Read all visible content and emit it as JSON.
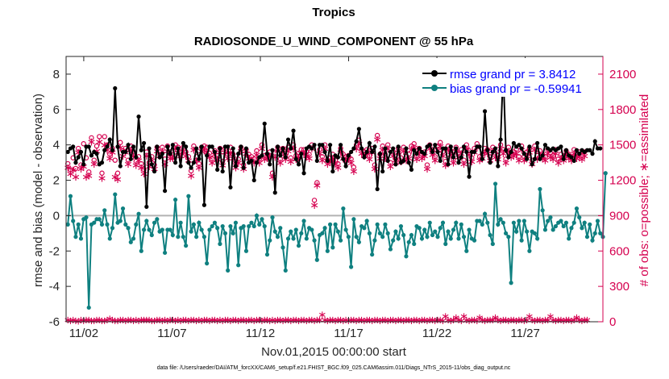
{
  "chart_data": {
    "type": "line",
    "title": "Tropics",
    "subtitle": "RADIOSONDE_U_WIND_COMPONENT @ 55 hPa",
    "xlabel": "Nov.01,2015 00:00:00 start",
    "ylabel": "rmse and bias (model - observation)",
    "ylabel_right": "# of obs: o=possible; ∗=assimilated",
    "footnote": "data file: /Users/raeder/DAI/ATM_forcXX/CAM6_setup/f.e21.FHIST_BGC.f09_025.CAM6assim.011/Diags_NTrS_2015-11/obs_diag_output.nc",
    "xlim": [
      0.5,
      30.9
    ],
    "ylim": [
      -6,
      9
    ],
    "ylim_right": [
      0,
      2250
    ],
    "x_ticks": [
      1.5,
      6.5,
      11.5,
      16.5,
      21.5,
      26.5
    ],
    "x_tick_labels": [
      "11/02",
      "11/07",
      "11/12",
      "11/17",
      "11/22",
      "11/27"
    ],
    "y_ticks": [
      -6,
      -4,
      -2,
      0,
      2,
      4,
      6,
      8
    ],
    "y_tick_labels": [
      "-6",
      "-4",
      "-2",
      "0",
      "2",
      "4",
      "6",
      "8"
    ],
    "y_right_ticks": [
      0,
      300,
      600,
      900,
      1200,
      1500,
      1800,
      2100
    ],
    "y_right_tick_labels": [
      "0",
      "300",
      "600",
      "900",
      "1200",
      "1500",
      "1800",
      "2100"
    ],
    "zero_line": 0,
    "colors": {
      "rmse": "#000000",
      "bias": "#0f8080",
      "obs": "#d5004f",
      "zero": "#b3b3b3",
      "legend_text": "#0000ff"
    },
    "series": [
      {
        "name": "rmse grand pr = 3.8412",
        "values": [
          3.6,
          3.8,
          3.9,
          3.0,
          3.3,
          3.6,
          2.9,
          3.9,
          3.9,
          3.4,
          3.6,
          3.5,
          2.9,
          3.0,
          3.7,
          3.9,
          4.3,
          3.7,
          7.2,
          3.9,
          2.8,
          3.6,
          3.6,
          4.0,
          3.2,
          3.9,
          3.3,
          5.6,
          3.7,
          4.1,
          0.5,
          3.8,
          2.9,
          2.5,
          3.9,
          3.3,
          3.5,
          1.4,
          3.9,
          3.5,
          4.0,
          3.0,
          3.8,
          2.8,
          4.1,
          3.9,
          3.0,
          2.7,
          3.0,
          3.8,
          3.2,
          3.9,
          0.6,
          3.4,
          3.9,
          3.9,
          3.6,
          2.6,
          3.8,
          2.5,
          3.9,
          3.9,
          1.6,
          3.8,
          2.8,
          3.5,
          3.9,
          2.7,
          3.8,
          3.0,
          3.1,
          2.0,
          3.0,
          3.3,
          3.4,
          5.2,
          3.5,
          2.9,
          3.7,
          1.3,
          3.9,
          3.4,
          3.8,
          3.3,
          4.3,
          3.8,
          4.8,
          3.2,
          2.9,
          3.5,
          2.4,
          3.8,
          3.9,
          3.8,
          4.0,
          3.1,
          4.0,
          4.0,
          3.6,
          3.1,
          4.0,
          2.5,
          3.4,
          3.3,
          4.0,
          3.2,
          2.8,
          3.4,
          3.6,
          3.8,
          4.2,
          4.9,
          3.8,
          3.3,
          3.6,
          4.1,
          3.6,
          3.9,
          1.5,
          3.5,
          2.5,
          3.8,
          3.1,
          3.6,
          3.8,
          2.9,
          3.9,
          3.0,
          3.1,
          3.8,
          3.0,
          2.6,
          3.7,
          3.5,
          3.8,
          3.6,
          3.5,
          3.9,
          4.0,
          3.6,
          4.0,
          3.6,
          3.1,
          3.8,
          3.8,
          2.9,
          3.9,
          3.3,
          3.8,
          3.0,
          3.3,
          3.9,
          3.6,
          2.2,
          3.6,
          3.6,
          3.9,
          3.9,
          3.2,
          5.9,
          3.7,
          3.0,
          3.6,
          3.8,
          2.8,
          4.3,
          8.2,
          3.7,
          3.3,
          3.6,
          4.1,
          3.9,
          4.0,
          3.8,
          3.5,
          3.2,
          3.9,
          2.9,
          3.2,
          4.1,
          3.2,
          3.4,
          4.0,
          3.8,
          3.7,
          3.8,
          3.7,
          3.8,
          3.9,
          3.2,
          3.7,
          3.4,
          3.3,
          3.1,
          3.7,
          3.5,
          3.7,
          3.6,
          3.7,
          3.7,
          3.5,
          4.2,
          3.8,
          3.8
        ]
      },
      {
        "name": "bias grand pr = -0.59941",
        "values": [
          -0.5,
          1.1,
          -0.3,
          -1.2,
          -0.5,
          -1.3,
          -0.2,
          -0.1,
          -5.2,
          -0.5,
          -0.4,
          -0.2,
          -0.2,
          -0.5,
          0.3,
          -0.5,
          -1.3,
          -0.7,
          1.2,
          -0.4,
          -0.3,
          0.4,
          -0.5,
          -0.7,
          -1.5,
          -1.3,
          -0.5,
          0.1,
          -2.0,
          -0.8,
          -0.3,
          -0.8,
          -1.1,
          -0.4,
          -0.2,
          -0.9,
          -0.8,
          -2.1,
          -0.8,
          -0.8,
          -1.1,
          0.9,
          -1.2,
          -0.4,
          -1.2,
          -1.7,
          1.1,
          -0.9,
          -0.5,
          -1.2,
          -0.4,
          -0.8,
          -1.2,
          -2.7,
          -0.8,
          -0.6,
          -0.4,
          -0.7,
          -1.6,
          -0.6,
          -1.0,
          -3.1,
          -0.6,
          -1.0,
          -0.4,
          -2.8,
          -0.7,
          -0.6,
          -2.0,
          -0.6,
          -0.4,
          -0.6,
          0.0,
          -0.5,
          -0.2,
          -0.6,
          -2.2,
          -1.4,
          -0.1,
          -0.9,
          -1.2,
          -0.7,
          -1.8,
          -3.1,
          -1.3,
          -0.9,
          -1.3,
          -0.8,
          -1.7,
          -1.0,
          -0.3,
          -1.3,
          -0.7,
          -0.8,
          -1.4,
          -2.5,
          -1.1,
          -1.0,
          -0.7,
          -2.0,
          -0.5,
          -1.8,
          -0.5,
          -0.9,
          -1.4,
          0.4,
          -0.8,
          -1.2,
          -2.9,
          -0.2,
          -1.2,
          -1.5,
          -0.6,
          -0.7,
          -0.3,
          -1.0,
          -2.2,
          -1.4,
          -0.5,
          -1.0,
          -1.2,
          -0.5,
          -1.0,
          -1.9,
          -1.4,
          -0.9,
          -1.3,
          -0.6,
          -1.1,
          -2.3,
          -1.5,
          -1.1,
          -1.6,
          -0.6,
          -0.7,
          -1.3,
          -0.8,
          -1.2,
          -0.4,
          -1.1,
          -0.9,
          -1.2,
          -0.7,
          -0.4,
          -1.6,
          -0.9,
          -1.3,
          -0.8,
          -0.4,
          -1.3,
          -0.5,
          -1.2,
          -2.0,
          -0.8,
          -1.3,
          -1.4,
          -0.3,
          -0.3,
          -0.5,
          0.1,
          -0.4,
          -1.1,
          -1.6,
          1.8,
          -0.5,
          -0.2,
          -0.4,
          -1.0,
          -1.2,
          -3.8,
          -0.4,
          -0.9,
          -0.3,
          -1.4,
          -0.3,
          -0.9,
          -2.0,
          -0.9,
          -1.0,
          -1.3,
          1.5,
          0.3,
          -0.8,
          -0.3,
          -0.1,
          -0.8,
          -0.6,
          -0.4,
          -0.3,
          -0.6,
          -0.4,
          -1.3,
          -0.7,
          -0.4,
          0.4,
          -0.1,
          -0.7,
          -0.4,
          -1.2,
          -0.5,
          -1.4,
          -1.0,
          -0.3,
          -1.0,
          -1.2,
          2.4
        ]
      }
    ],
    "obs_possible": [
      1340,
      1290,
      1390,
      1300,
      1470,
      1330,
      1510,
      1390,
      1270,
      1560,
      1370,
      1490,
      1570,
      1260,
      1570,
      1500,
      1420,
      1470,
      1370,
      1260,
      1520,
      1450,
      1470,
      1370,
      1490,
      1440,
      1360,
      1400,
      1340,
      1290,
      1440,
      1350,
      1400,
      1330,
      1480,
      1440,
      1480,
      1380,
      1490,
      1420,
      1420,
      1500,
      1480,
      1440,
      1480,
      1440,
      1400,
      1280,
      1490,
      1400,
      1340,
      1480,
      1490,
      1480,
      1430,
      1380,
      1450,
      1410,
      1470,
      1360,
      1470,
      1420,
      1480,
      1420,
      1340,
      1380,
      1480,
      1330,
      1460,
      1420,
      1400,
      1380,
      1450,
      1380,
      1500,
      1410,
      1420,
      1440,
      1260,
      1430,
      1480,
      1380,
      1470,
      1410,
      1480,
      1390,
      1500,
      1410,
      1430,
      1460,
      1460,
      1440,
      1420,
      1500,
      1030,
      1180,
      1460,
      1400,
      1500,
      1370,
      1390,
      1420,
      1370,
      1340,
      1470,
      1420,
      1400,
      1410,
      1380,
      1310,
      1500,
      1540,
      1460,
      1440,
      1460,
      1410,
      1470,
      1330,
      1580,
      1420,
      1490,
      1420,
      1500,
      1350,
      1440,
      1380,
      1470,
      1390,
      1480,
      1400,
      1420,
      1490,
      1510,
      1410,
      1470,
      1420,
      1440,
      1330,
      1500,
      1450,
      1400,
      1490,
      1520,
      1440,
      1360,
      1490,
      1450,
      1380,
      1480,
      1430,
      1460,
      1370,
      1500,
      1450,
      1390,
      1470,
      1510,
      1400,
      1420,
      1470,
      1460,
      1400,
      1480,
      1430,
      1410,
      1500,
      1460,
      1380,
      1480,
      1430,
      1440,
      1460,
      1400,
      1490,
      1400,
      1440,
      1470,
      1370,
      1490,
      1410,
      1450,
      1420,
      1400,
      1460,
      1430,
      1410,
      1460,
      1380,
      1420,
      1400,
      1450,
      1420,
      1400,
      1460,
      1420,
      1440,
      1410,
      1440
    ],
    "obs_assimilated": [
      1310,
      1260,
      1290,
      1230,
      1440,
      1300,
      1320,
      1230,
      1240,
      1530,
      1340,
      1450,
      1530,
      1220,
      1500,
      1460,
      1390,
      1440,
      1230,
      1210,
      1480,
      1410,
      1440,
      1340,
      1460,
      1410,
      1330,
      1370,
      1310,
      1260,
      1410,
      1320,
      1370,
      1300,
      1450,
      1410,
      1450,
      1340,
      1450,
      1390,
      1390,
      1470,
      1440,
      1410,
      1450,
      1410,
      1370,
      1240,
      1460,
      1370,
      1310,
      1450,
      1460,
      1440,
      1400,
      1350,
      1420,
      1380,
      1440,
      1330,
      1440,
      1390,
      1440,
      1390,
      1310,
      1350,
      1450,
      1300,
      1430,
      1390,
      1370,
      1350,
      1420,
      1350,
      1470,
      1380,
      1390,
      1410,
      1230,
      1400,
      1450,
      1350,
      1440,
      1380,
      1450,
      1360,
      1470,
      1380,
      1400,
      1430,
      1430,
      1410,
      1390,
      1470,
      990,
      1160,
      1430,
      1370,
      1470,
      1340,
      1360,
      1390,
      1340,
      1310,
      1440,
      1390,
      1370,
      1380,
      1350,
      1280,
      1470,
      1510,
      1430,
      1410,
      1430,
      1380,
      1440,
      1300,
      1550,
      1390,
      1460,
      1390,
      1470,
      1320,
      1410,
      1350,
      1440,
      1360,
      1450,
      1370,
      1390,
      1460,
      1480,
      1380,
      1440,
      1390,
      1410,
      1300,
      1470,
      1420,
      1370,
      1460,
      1490,
      1410,
      1330,
      1460,
      1420,
      1350,
      1450,
      1400,
      1430,
      1340,
      1470,
      1420,
      1360,
      1440,
      1480,
      1370,
      1390,
      1440,
      1430,
      1370,
      1450,
      1400,
      1380,
      1470,
      1430,
      1350,
      1450,
      1400,
      1410,
      1430,
      1370,
      1460,
      1370,
      1410,
      1440,
      1340,
      1460,
      1380,
      1420,
      1390,
      1370,
      1430,
      1400,
      1380,
      1430,
      1350,
      1390,
      1370,
      1420,
      1390,
      1370,
      1430,
      1390,
      1410,
      1380,
      1410
    ],
    "obs_zero_possible": [
      20,
      15,
      20,
      15,
      10,
      20,
      15,
      20,
      20,
      15,
      15,
      20,
      20,
      15,
      15,
      20,
      30,
      20,
      15,
      15,
      20,
      20,
      15,
      20,
      20,
      15,
      20,
      15,
      20,
      20,
      20,
      20,
      15,
      15,
      20,
      20,
      15,
      20,
      15,
      20,
      20,
      15,
      20,
      15,
      20,
      20,
      15,
      20,
      20,
      15,
      20,
      15,
      20,
      20,
      15,
      20,
      20,
      15,
      20,
      15,
      20,
      20,
      15,
      20,
      20,
      15,
      20,
      20,
      15,
      20,
      20,
      15,
      20,
      20,
      15,
      20,
      20,
      15,
      20,
      15,
      20,
      20,
      15,
      20,
      20,
      15,
      20,
      20,
      15,
      20,
      20,
      15,
      20,
      20,
      15,
      20,
      20,
      65,
      20,
      15,
      20,
      20,
      15,
      20,
      20,
      15,
      20,
      15,
      20,
      20,
      15,
      20,
      20,
      15,
      20,
      20,
      15,
      20,
      20,
      15,
      20,
      20,
      15,
      20,
      20,
      15,
      20,
      20,
      15,
      20,
      20,
      15,
      20,
      20,
      15,
      20,
      20,
      15,
      20,
      20,
      15,
      20,
      20,
      15,
      50,
      20,
      15,
      20,
      40,
      20,
      15,
      50,
      20,
      15,
      20,
      20,
      15,
      40,
      20,
      15,
      20,
      20,
      20,
      40,
      20,
      15,
      20,
      20,
      15,
      20,
      20,
      15,
      20,
      20,
      15,
      20,
      50,
      20,
      15,
      20,
      20,
      15,
      20,
      20,
      50,
      20,
      15,
      20,
      20,
      15,
      20,
      20,
      15,
      20,
      40,
      20,
      15,
      20,
      20
    ]
  },
  "legend": {
    "rmse_label": "rmse grand pr = 3.8412",
    "bias_label": "bias grand pr = -0.59941"
  }
}
